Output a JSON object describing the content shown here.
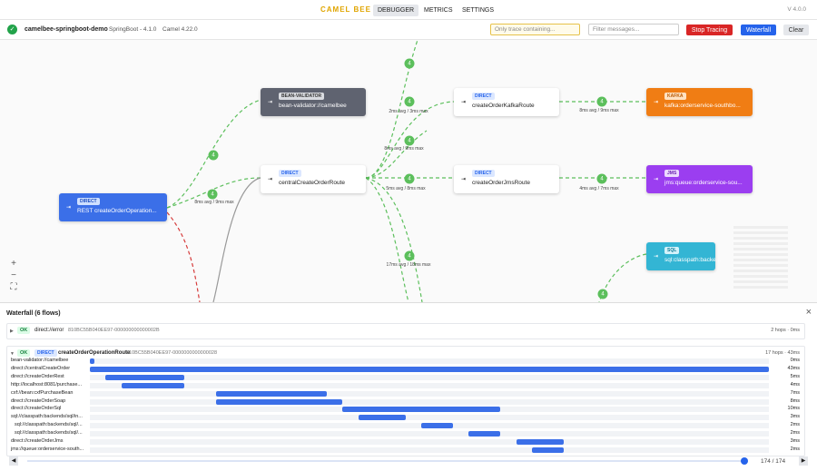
{
  "header": {
    "brand": "CAMEL BEE",
    "tabs": [
      "DEBUGGER",
      "METRICS",
      "SETTINGS"
    ],
    "version": "V 4.0.0"
  },
  "toolbar": {
    "app": "camelbee-springboot-demo",
    "framework": "SpringBoot - 4.1.0",
    "camel": "Camel 4.22.0",
    "trace_placeholder": "Only trace containing...",
    "filter_placeholder": "Filter messages...",
    "buttons": [
      "Stop Tracing",
      "Waterfall",
      "Clear"
    ]
  },
  "graph": {
    "nodes": [
      {
        "kind": "DIRECT",
        "label": "REST createOrderOperation..."
      },
      {
        "kind": "BEAN-VALIDATOR",
        "label": "bean-validator://camelbee"
      },
      {
        "kind": "DIRECT",
        "label": "centralCreateOrderRoute"
      },
      {
        "kind": "DIRECT",
        "label": "createOrderKafkaRoute"
      },
      {
        "kind": "DIRECT",
        "label": "createOrderJmsRoute"
      },
      {
        "kind": "KAFKA",
        "label": "kafka:orderservice-southbo..."
      },
      {
        "kind": "JMS",
        "label": "jms:queue:orderservice-sou..."
      },
      {
        "kind": "SQL",
        "label": "sql:classpath:backe..."
      }
    ],
    "edge_stats": [
      "8ms avg / 9ms max",
      "2ms avg / 3ms max",
      "8ms avg / 9ms max",
      "5ms avg / 8ms max",
      "17ms avg / 18ms max",
      "8ms avg / 9ms max",
      "4ms avg / 7ms max"
    ],
    "counts": [
      4,
      4,
      4,
      4,
      4,
      4,
      4,
      4,
      4,
      4
    ]
  },
  "waterfall": {
    "title": "Waterfall (6 flows)",
    "flows": [
      {
        "status": "OK",
        "route": "direct://error",
        "id": "810BC55B040EE97-000000000000002B",
        "summary": "2 hops · 0ms"
      },
      {
        "status": "OK",
        "kind": "DIRECT",
        "route": "createOrderOperationRoute",
        "id": "810BC55B040EE97-0000000000000028",
        "summary": "17 hops · 43ms",
        "steps": [
          {
            "label": "bean-validator://camelbee",
            "start": 0,
            "duration": {
              "value": 0,
              "label": "0ms"
            }
          },
          {
            "label": "direct://centralCreateOrder",
            "start": 0,
            "duration": {
              "value": 43,
              "label": "43ms"
            }
          },
          {
            "label": "direct://createOrderRest",
            "start": 1,
            "duration": {
              "value": 5,
              "label": "5ms"
            }
          },
          {
            "label": "http://localhost:8081/purchase...",
            "start": 2,
            "duration": {
              "value": 4,
              "label": "4ms"
            }
          },
          {
            "label": "cxf://bean:cxfPurchaseBean",
            "start": 8,
            "duration": {
              "value": 7,
              "label": "7ms"
            }
          },
          {
            "label": "direct://createOrderSoap",
            "start": 8,
            "duration": {
              "value": 8,
              "label": "8ms"
            }
          },
          {
            "label": "direct://createOrderSql",
            "start": 16,
            "duration": {
              "value": 10,
              "label": "10ms"
            }
          },
          {
            "label": "sql://classpath:backends/sql/in...",
            "start": 17,
            "duration": {
              "value": 3,
              "label": "3ms"
            }
          },
          {
            "label": "sql://classpath:backends/sql/...",
            "start": 21,
            "duration": {
              "value": 2,
              "label": "2ms"
            }
          },
          {
            "label": "sql://classpath:backends/sql/...",
            "start": 24,
            "duration": {
              "value": 2,
              "label": "2ms"
            }
          },
          {
            "label": "direct://createOrderJms",
            "start": 27,
            "duration": {
              "value": 3,
              "label": "3ms"
            }
          },
          {
            "label": "jms://queue:orderservice-south...",
            "start": 28,
            "duration": {
              "value": 2,
              "label": "2ms"
            }
          }
        ]
      }
    ]
  },
  "player": {
    "position": "174 / 174"
  }
}
